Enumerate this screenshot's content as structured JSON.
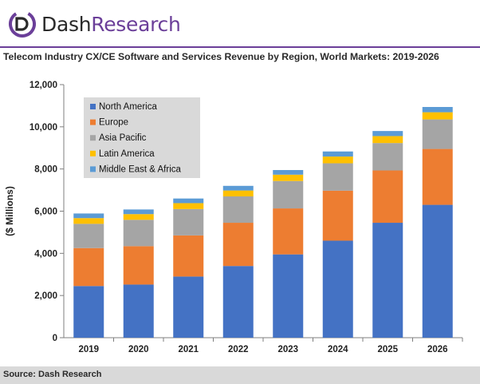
{
  "brand": {
    "name_part1": "Dash",
    "name_part2": "Research",
    "accent_color": "#6b3f99"
  },
  "title": "Telecom Industry CX/CE Software and Services Revenue by Region, World Markets: 2019-2026",
  "source": "Source: Dash Research",
  "chart_data": {
    "type": "bar",
    "stacked": true,
    "categories": [
      "2019",
      "2020",
      "2021",
      "2022",
      "2023",
      "2024",
      "2025",
      "2026"
    ],
    "series": [
      {
        "name": "North America",
        "color": "#4472c4",
        "values": [
          2450,
          2520,
          2900,
          3400,
          3950,
          4600,
          5450,
          6300
        ]
      },
      {
        "name": "Europe",
        "color": "#ed7d31",
        "values": [
          1800,
          1820,
          1950,
          2050,
          2180,
          2370,
          2480,
          2650
        ]
      },
      {
        "name": "Asia Pacific",
        "color": "#a5a5a5",
        "values": [
          1150,
          1250,
          1250,
          1250,
          1300,
          1300,
          1300,
          1400
        ]
      },
      {
        "name": "Latin America",
        "color": "#ffc000",
        "values": [
          270,
          270,
          280,
          280,
          300,
          320,
          330,
          340
        ]
      },
      {
        "name": "Middle East & Africa",
        "color": "#5b9bd5",
        "values": [
          220,
          220,
          220,
          220,
          220,
          240,
          240,
          250
        ]
      }
    ],
    "ylabel": "($ Millions)",
    "ylim": [
      0,
      12000
    ],
    "yticks": [
      "0",
      "2,000",
      "4,000",
      "6,000",
      "8,000",
      "10,000",
      "12,000"
    ],
    "ytick_values": [
      0,
      2000,
      4000,
      6000,
      8000,
      10000,
      12000
    ],
    "grid": false,
    "legend_position": "top-left"
  }
}
